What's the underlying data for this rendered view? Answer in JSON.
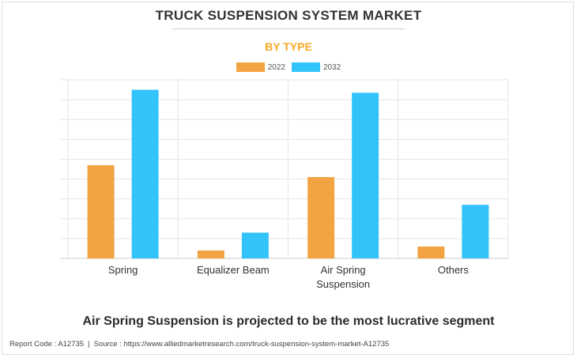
{
  "header": {
    "title": "TRUCK SUSPENSION SYSTEM MARKET",
    "subtitle": "BY TYPE"
  },
  "colors": {
    "series_2022": "#f2a443",
    "series_2032": "#33c3fb",
    "subtitle": "#f5a623",
    "grid": "#e6e6e6"
  },
  "chart_data": {
    "type": "bar",
    "categories": [
      "Spring",
      "Equalizer Beam",
      "Air Spring Suspension",
      "Others"
    ],
    "category_lines": [
      [
        "Spring"
      ],
      [
        "Equalizer Beam"
      ],
      [
        "Air Spring",
        "Suspension"
      ],
      [
        "Others"
      ]
    ],
    "series": [
      {
        "name": "2022",
        "values": [
          4.7,
          0.4,
          4.1,
          0.6
        ]
      },
      {
        "name": "2032",
        "values": [
          8.5,
          1.3,
          8.35,
          2.7
        ]
      }
    ],
    "ylim": [
      0,
      9
    ],
    "grid": true,
    "legend": "top-center"
  },
  "headline": "Air Spring Suspension is projected to be the most lucrative segment",
  "footer": {
    "report_code": "Report Code : A12735",
    "separator": "|",
    "source": "Source : https://www.alliedmarketresearch.com/truck-suspension-system-market-A12735"
  }
}
